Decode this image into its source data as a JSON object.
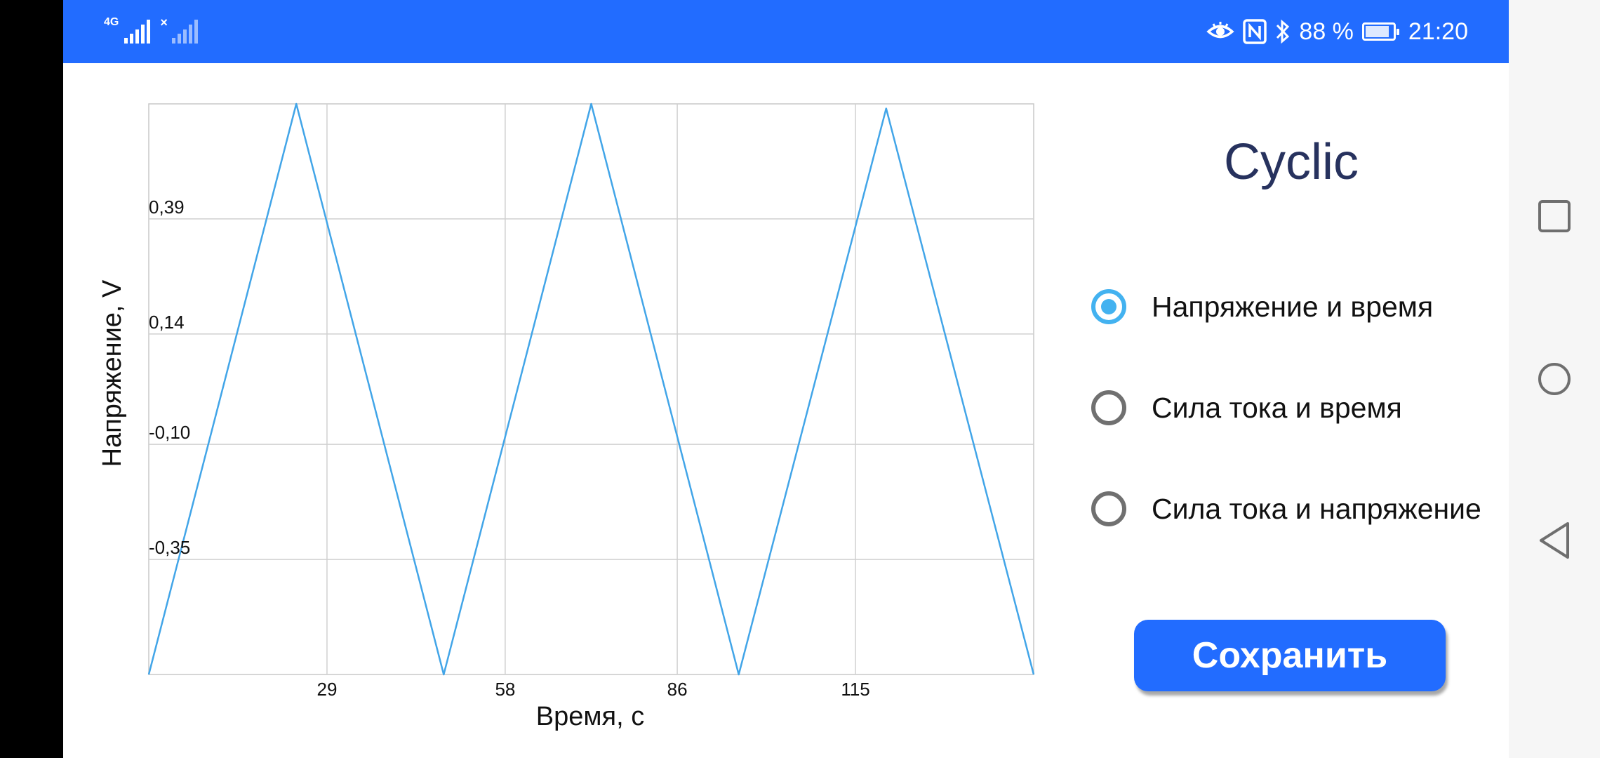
{
  "status_bar": {
    "network": "4G",
    "battery": "88 %",
    "time": "21:20",
    "battery_level": 0.88
  },
  "colors": {
    "status_bar": "#226cff",
    "accent": "#43b2f0",
    "button": "#226cff",
    "title": "#27325e"
  },
  "icons": [
    "signal-4g-icon",
    "signal-no-sim-icon",
    "eye-comfort-icon",
    "nfc-icon",
    "bluetooth-icon",
    "battery-charging-icon",
    "recent-apps-icon",
    "home-icon",
    "back-icon"
  ],
  "panel": {
    "title": "Cyclic",
    "options": [
      {
        "label": "Напряжение и время",
        "selected": true
      },
      {
        "label": "Сила тока и время",
        "selected": false
      },
      {
        "label": "Сила тока и напряжение",
        "selected": false
      }
    ],
    "save_label": "Сохранить"
  },
  "chart_data": {
    "type": "line",
    "xlabel": "Время, с",
    "ylabel": "Напряжение, V",
    "x_ticks": [
      29,
      58,
      86,
      115
    ],
    "x_tick_labels": [
      "29",
      "58",
      "86",
      "115"
    ],
    "y_ticks": [
      0.39,
      0.14,
      -0.1,
      -0.35
    ],
    "y_tick_labels": [
      "0,39",
      "0,14",
      "-0,10",
      "-0,35"
    ],
    "xlim": [
      0,
      144
    ],
    "ylim": [
      -0.6,
      0.64
    ],
    "grid": true,
    "series": [
      {
        "color": "#42a5e8",
        "x": [
          0,
          24,
          48,
          72,
          96,
          120,
          144
        ],
        "y": [
          -0.6,
          0.64,
          -0.6,
          0.64,
          -0.6,
          0.63,
          -0.6
        ]
      }
    ]
  }
}
